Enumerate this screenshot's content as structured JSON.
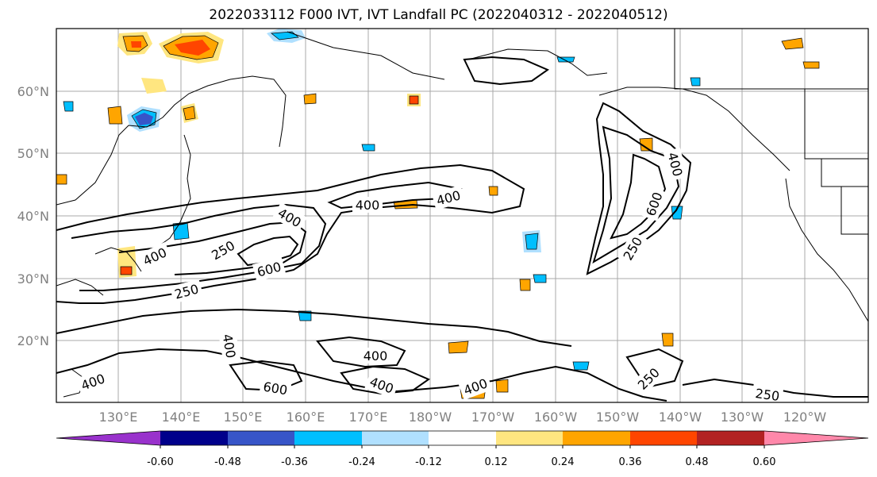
{
  "title": "2022033112 F000 IVT, IVT Landfall PC (2022040312 - 2022040512)",
  "latitudes": [
    "60°N",
    "50°N",
    "40°N",
    "30°N",
    "20°N"
  ],
  "longitudes": [
    "130°E",
    "140°E",
    "150°E",
    "160°E",
    "170°E",
    "180°W",
    "170°W",
    "160°W",
    "150°W",
    "140°W",
    "130°W",
    "120°W"
  ],
  "contour_labels": [
    "400",
    "400",
    "400",
    "250",
    "600",
    "400",
    "250",
    "400",
    "400",
    "400",
    "600",
    "400",
    "400",
    "600",
    "250",
    "250",
    "400",
    "250"
  ],
  "colorbar": {
    "colors": [
      "#9932cc",
      "#00008b",
      "#3755c8",
      "#00bfff",
      "#b0e0ff",
      "#ffffff",
      "#ffe680",
      "#ffa500",
      "#ff4500",
      "#b22222",
      "#ff88aa"
    ],
    "tick_labels": [
      "-0.60",
      "-0.48",
      "-0.36",
      "-0.24",
      "-0.12",
      "0.12",
      "0.24",
      "0.36",
      "0.48",
      "0.60"
    ]
  }
}
